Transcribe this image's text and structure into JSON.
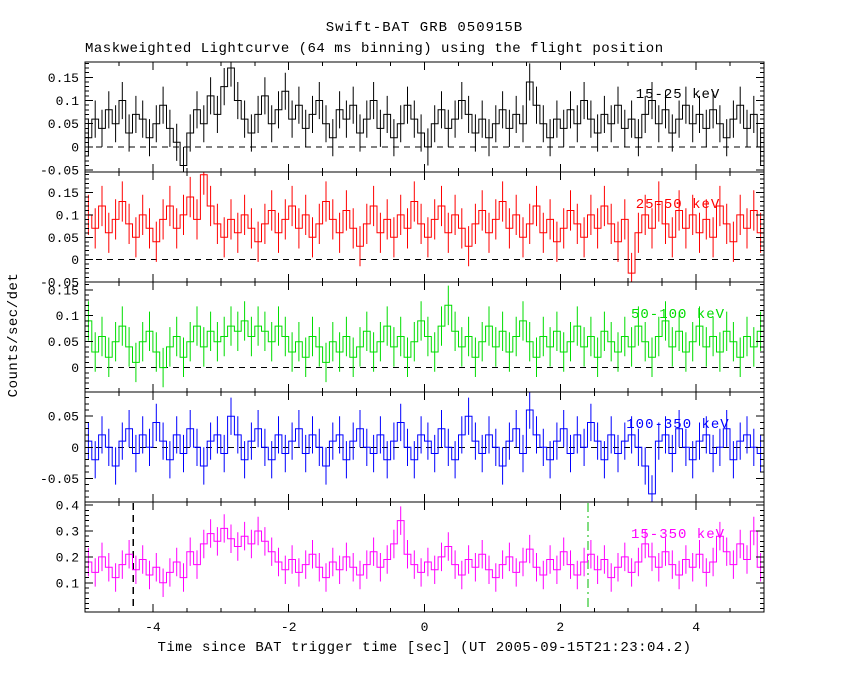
{
  "chart": {
    "title": "Swift-BAT GRB 050915B",
    "subtitle": "Maskweighted Lightcurve (64 ms binning) using the flight position",
    "xlabel": "Time since BAT trigger time [sec] (UT 2005-09-15T21:23:04.2)",
    "ylabel": "Counts/sec/det"
  },
  "chart_data": {
    "type": "line",
    "subtype": "histogram-step-with-errorbars",
    "title": "Swift-BAT GRB 050915B",
    "subtitle": "Maskweighted Lightcurve (64 ms binning) using the flight position",
    "xlabel": "Time since BAT trigger time [sec] (UT 2005-09-15T21:23:04.2)",
    "ylabel": "Counts/sec/det",
    "x_range": [
      -5.0,
      5.0
    ],
    "x_ticks": [
      -4,
      -2,
      0,
      2,
      4
    ],
    "x_tick_labels": [
      "-4",
      "-2",
      "0",
      "2",
      "4"
    ],
    "x_minor_step": 0.5,
    "grid": false,
    "panels": [
      {
        "label": "15-25 keV",
        "color": "#000000",
        "ylim": [
          -0.054,
          0.183
        ],
        "yticks": [
          -0.05,
          0,
          0.05,
          0.1,
          0.15
        ],
        "ytick_labels": [
          "-0.05",
          "0",
          "0.05",
          "0.1",
          "0.15"
        ],
        "y_minor_step": 0.01,
        "zero_line": 0,
        "err": 0.04,
        "values": [
          0.02,
          0.06,
          0.04,
          0.08,
          0.05,
          0.1,
          0.03,
          0.07,
          0.06,
          0.02,
          0.05,
          0.09,
          0.04,
          0.01,
          -0.04,
          0.03,
          0.08,
          0.05,
          0.11,
          0.07,
          0.13,
          0.17,
          0.1,
          0.06,
          0.03,
          0.07,
          0.11,
          0.05,
          0.08,
          0.12,
          0.06,
          0.09,
          0.04,
          0.07,
          0.1,
          0.05,
          0.02,
          0.08,
          0.06,
          0.09,
          0.03,
          0.06,
          0.1,
          0.04,
          0.07,
          0.02,
          0.05,
          0.09,
          0.06,
          0.03,
          0.0,
          0.05,
          0.08,
          0.04,
          0.06,
          0.1,
          0.07,
          0.03,
          0.06,
          0.02,
          0.05,
          0.08,
          0.04,
          0.07,
          0.05,
          0.14,
          0.09,
          0.05,
          0.02,
          0.06,
          0.04,
          0.08,
          0.05,
          0.1,
          0.06,
          0.03,
          0.07,
          0.05,
          0.09,
          0.04,
          0.06,
          0.02,
          0.07,
          0.1,
          0.05,
          0.08,
          0.03,
          0.06,
          0.09,
          0.05,
          0.07,
          0.04,
          0.08,
          0.05,
          0.02,
          0.06,
          0.09,
          0.04,
          0.07,
          0.0
        ]
      },
      {
        "label": "25-50 keV",
        "color": "#ff0000",
        "ylim": [
          -0.05,
          0.196
        ],
        "yticks": [
          -0.05,
          0,
          0.05,
          0.1,
          0.15
        ],
        "ytick_labels": [
          "-0.05",
          "0",
          "0.05",
          "0.1",
          "0.15"
        ],
        "y_minor_step": 0.01,
        "zero_line": 0,
        "err": 0.045,
        "values": [
          0.1,
          0.07,
          0.12,
          0.06,
          0.09,
          0.13,
          0.08,
          0.05,
          0.1,
          0.07,
          0.04,
          0.09,
          0.12,
          0.07,
          0.1,
          0.14,
          0.09,
          0.19,
          0.12,
          0.08,
          0.05,
          0.09,
          0.06,
          0.1,
          0.07,
          0.04,
          0.08,
          0.11,
          0.06,
          0.09,
          0.12,
          0.07,
          0.1,
          0.05,
          0.08,
          0.13,
          0.09,
          0.06,
          0.11,
          0.07,
          0.03,
          0.08,
          0.12,
          0.06,
          0.09,
          0.05,
          0.1,
          0.07,
          0.13,
          0.08,
          0.05,
          0.09,
          0.12,
          0.06,
          0.1,
          0.07,
          0.03,
          0.08,
          0.11,
          0.06,
          0.09,
          0.13,
          0.07,
          0.1,
          0.05,
          0.08,
          0.12,
          0.06,
          0.09,
          0.04,
          0.07,
          0.11,
          0.08,
          0.05,
          0.1,
          0.07,
          0.12,
          0.08,
          0.04,
          0.09,
          -0.03,
          0.06,
          0.1,
          0.07,
          0.13,
          0.08,
          0.05,
          0.11,
          0.07,
          0.1,
          0.06,
          0.09,
          0.05,
          0.12,
          0.08,
          0.04,
          0.1,
          0.07,
          0.11,
          0.06
        ]
      },
      {
        "label": "50-100 keV",
        "color": "#00dd00",
        "ylim": [
          -0.047,
          0.165
        ],
        "yticks": [
          0,
          0.05,
          0.1,
          0.15
        ],
        "ytick_labels": [
          "0",
          "0.05",
          "0.1",
          "0.15"
        ],
        "y_minor_step": 0.01,
        "zero_line": 0,
        "err": 0.038,
        "values": [
          0.09,
          0.03,
          0.06,
          0.02,
          0.05,
          0.08,
          0.04,
          0.01,
          0.05,
          0.07,
          0.03,
          0.0,
          0.04,
          0.06,
          0.02,
          0.05,
          0.08,
          0.04,
          0.07,
          0.05,
          0.06,
          0.08,
          0.07,
          0.09,
          0.06,
          0.08,
          0.07,
          0.05,
          0.08,
          0.06,
          0.03,
          0.05,
          0.02,
          0.06,
          0.04,
          0.01,
          0.05,
          0.03,
          0.06,
          0.02,
          0.04,
          0.07,
          0.03,
          0.05,
          0.08,
          0.04,
          0.06,
          0.02,
          0.05,
          0.09,
          0.06,
          0.03,
          0.08,
          0.12,
          0.07,
          0.04,
          0.06,
          0.02,
          0.05,
          0.08,
          0.04,
          0.07,
          0.03,
          0.06,
          0.09,
          0.05,
          0.02,
          0.06,
          0.04,
          0.07,
          0.03,
          0.05,
          0.08,
          0.04,
          0.06,
          0.02,
          0.07,
          0.05,
          0.03,
          0.06,
          0.04,
          0.08,
          0.05,
          0.02,
          0.06,
          0.09,
          0.04,
          0.07,
          0.03,
          0.05,
          0.08,
          0.04,
          0.06,
          0.03,
          0.07,
          0.05,
          0.02,
          0.06,
          0.04,
          0.07
        ]
      },
      {
        "label": "100-350 keV",
        "color": "#0000ff",
        "ylim": [
          -0.088,
          0.089
        ],
        "yticks": [
          -0.05,
          0,
          0.05
        ],
        "ytick_labels": [
          "-0.05",
          "0",
          "0.05"
        ],
        "y_minor_step": 0.01,
        "zero_line": 0,
        "err": 0.03,
        "values": [
          0.01,
          -0.02,
          0.02,
          0.0,
          -0.03,
          0.01,
          0.03,
          -0.01,
          0.02,
          0.0,
          0.04,
          0.01,
          -0.02,
          0.02,
          -0.01,
          0.03,
          0.0,
          -0.03,
          0.01,
          0.02,
          -0.01,
          0.05,
          0.02,
          -0.02,
          0.01,
          0.03,
          0.0,
          -0.02,
          0.02,
          -0.01,
          0.01,
          0.03,
          -0.01,
          0.02,
          0.0,
          -0.03,
          0.01,
          0.02,
          -0.02,
          0.01,
          0.03,
          0.0,
          -0.01,
          0.02,
          -0.02,
          0.01,
          0.04,
          0.0,
          -0.02,
          0.02,
          0.01,
          -0.01,
          0.03,
          0.0,
          -0.02,
          0.02,
          0.05,
          0.01,
          -0.01,
          0.02,
          0.0,
          -0.03,
          0.01,
          0.03,
          -0.01,
          0.06,
          0.02,
          0.0,
          -0.02,
          0.01,
          0.03,
          -0.01,
          0.02,
          0.0,
          0.04,
          0.01,
          -0.02,
          0.02,
          -0.01,
          0.01,
          0.02,
          0.0,
          -0.03,
          -0.075,
          0.01,
          0.02,
          -0.01,
          0.03,
          0.0,
          -0.02,
          0.01,
          0.02,
          -0.01,
          0.0,
          0.03,
          -0.02,
          0.01,
          0.02,
          0.0,
          -0.01
        ]
      },
      {
        "label": "15-350 keV",
        "color": "#ff00ff",
        "ylim": [
          -0.013,
          0.412
        ],
        "yticks": [
          0.1,
          0.2,
          0.3,
          0.4
        ],
        "ytick_labels": [
          "0.1",
          "0.2",
          "0.3",
          "0.4"
        ],
        "y_minor_step": 0.02,
        "zero_line": null,
        "err": 0.055,
        "values": [
          0.18,
          0.14,
          0.2,
          0.16,
          0.12,
          0.17,
          0.21,
          0.15,
          0.19,
          0.13,
          0.16,
          0.1,
          0.14,
          0.18,
          0.12,
          0.22,
          0.17,
          0.25,
          0.29,
          0.26,
          0.31,
          0.27,
          0.24,
          0.28,
          0.25,
          0.3,
          0.26,
          0.22,
          0.18,
          0.15,
          0.19,
          0.14,
          0.17,
          0.21,
          0.16,
          0.12,
          0.18,
          0.15,
          0.2,
          0.16,
          0.13,
          0.17,
          0.22,
          0.16,
          0.19,
          0.25,
          0.34,
          0.21,
          0.17,
          0.14,
          0.18,
          0.15,
          0.2,
          0.24,
          0.17,
          0.13,
          0.19,
          0.16,
          0.21,
          0.15,
          0.12,
          0.17,
          0.2,
          0.14,
          0.18,
          0.23,
          0.16,
          0.13,
          0.19,
          0.15,
          0.22,
          0.17,
          0.13,
          0.18,
          0.21,
          0.15,
          0.19,
          0.12,
          0.16,
          0.2,
          0.14,
          0.18,
          0.25,
          0.2,
          0.16,
          0.22,
          0.17,
          0.13,
          0.19,
          0.16,
          0.21,
          0.14,
          0.18,
          0.28,
          0.22,
          0.17,
          0.25,
          0.19,
          0.3,
          0.16
        ]
      }
    ],
    "marker_lines": [
      {
        "x": -4.29,
        "color": "#000000",
        "style": "dashed",
        "panel_index": 4
      },
      {
        "x": 2.41,
        "color": "#00bb00",
        "style": "dash-dot",
        "panel_index": 4
      }
    ]
  }
}
